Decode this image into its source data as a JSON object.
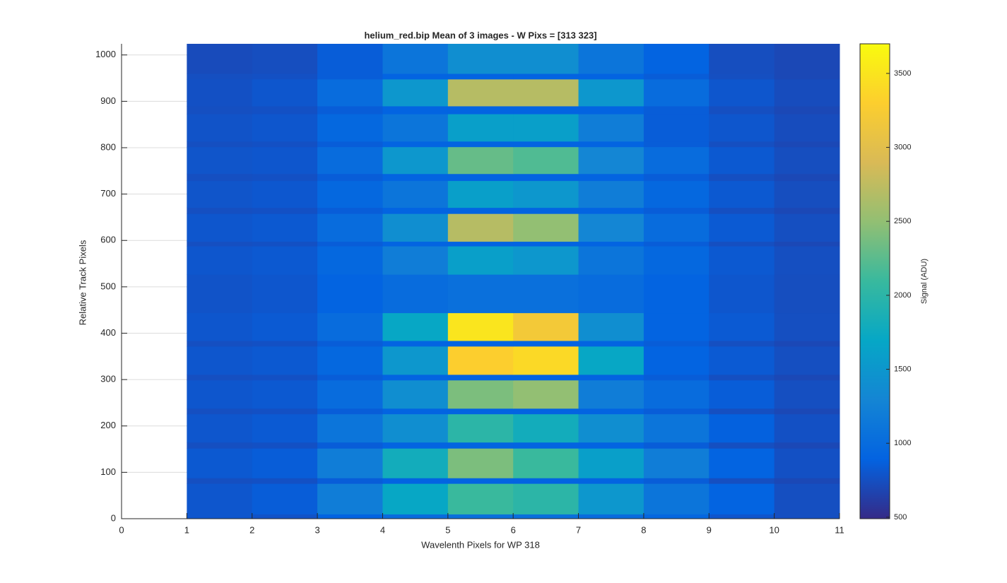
{
  "chart_data": {
    "type": "heatmap",
    "title": "helium_red.bip  Mean of 3 images - W Pixs = [313  323]",
    "x_label": "Wavelenth Pixels for WP 318",
    "y_label": "Relative Track Pixels",
    "colorbar_label": "Signal (ADU)",
    "colormap": "parula",
    "grid": true,
    "xlim": [
      0,
      11
    ],
    "xticks": [
      0,
      1,
      2,
      3,
      4,
      5,
      6,
      7,
      8,
      9,
      10,
      11
    ],
    "ylim": [
      0,
      1024
    ],
    "yticks": [
      0,
      100,
      200,
      300,
      400,
      500,
      600,
      700,
      800,
      900,
      1000
    ],
    "clim": [
      490,
      3700
    ],
    "cticks": [
      500,
      1000,
      1500,
      2000,
      2500,
      3000,
      3500
    ],
    "x_edges": [
      1,
      2,
      3,
      4,
      5,
      6,
      7,
      8,
      9,
      10,
      11
    ],
    "y_edges": [
      0,
      10,
      76,
      88,
      152,
      165,
      226,
      238,
      299,
      311,
      372,
      384,
      444,
      527,
      588,
      598,
      658,
      671,
      729,
      744,
      802,
      814,
      873,
      890,
      948,
      960,
      1024
    ],
    "values": [
      [
        800,
        780,
        900,
        1000,
        1050,
        1050,
        1000,
        950,
        800,
        750
      ],
      [
        800,
        850,
        1200,
        1700,
        2100,
        2000,
        1500,
        1100,
        900,
        750
      ],
      [
        750,
        760,
        850,
        900,
        900,
        900,
        900,
        850,
        750,
        700
      ],
      [
        820,
        850,
        1200,
        1800,
        2400,
        2100,
        1600,
        1200,
        900,
        760
      ],
      [
        750,
        760,
        850,
        900,
        900,
        900,
        900,
        850,
        750,
        700
      ],
      [
        800,
        830,
        1100,
        1400,
        2000,
        1800,
        1400,
        1100,
        880,
        760
      ],
      [
        750,
        760,
        850,
        900,
        900,
        900,
        900,
        850,
        750,
        700
      ],
      [
        800,
        820,
        1000,
        1400,
        2400,
        2500,
        1200,
        1000,
        850,
        750
      ],
      [
        750,
        760,
        850,
        900,
        900,
        900,
        900,
        850,
        750,
        700
      ],
      [
        800,
        820,
        950,
        1500,
        3300,
        3400,
        1700,
        900,
        830,
        750
      ],
      [
        750,
        760,
        850,
        900,
        900,
        900,
        900,
        850,
        750,
        700
      ],
      [
        800,
        830,
        1000,
        1700,
        3500,
        3200,
        1400,
        900,
        830,
        750
      ],
      [
        780,
        800,
        900,
        1000,
        1050,
        1050,
        1000,
        900,
        800,
        740
      ],
      [
        800,
        820,
        950,
        1200,
        1600,
        1500,
        1100,
        950,
        820,
        750
      ],
      [
        750,
        760,
        850,
        900,
        900,
        900,
        900,
        850,
        750,
        700
      ],
      [
        800,
        820,
        1000,
        1400,
        2700,
        2500,
        1300,
        1000,
        830,
        750
      ],
      [
        750,
        760,
        850,
        900,
        900,
        900,
        900,
        850,
        750,
        700
      ],
      [
        790,
        810,
        950,
        1100,
        1600,
        1500,
        1200,
        950,
        820,
        740
      ],
      [
        750,
        760,
        850,
        900,
        900,
        900,
        900,
        850,
        750,
        700
      ],
      [
        790,
        800,
        1000,
        1500,
        2300,
        2200,
        1300,
        1000,
        820,
        740
      ],
      [
        750,
        760,
        850,
        900,
        900,
        900,
        900,
        850,
        750,
        700
      ],
      [
        780,
        800,
        950,
        1100,
        1600,
        1600,
        1200,
        850,
        800,
        730
      ],
      [
        750,
        760,
        850,
        900,
        900,
        900,
        900,
        850,
        750,
        700
      ],
      [
        760,
        800,
        1000,
        1500,
        2700,
        2700,
        1500,
        1000,
        800,
        730
      ],
      [
        750,
        760,
        850,
        900,
        900,
        900,
        900,
        850,
        750,
        700
      ],
      [
        720,
        740,
        850,
        1100,
        1400,
        1400,
        1100,
        900,
        740,
        700
      ]
    ]
  }
}
